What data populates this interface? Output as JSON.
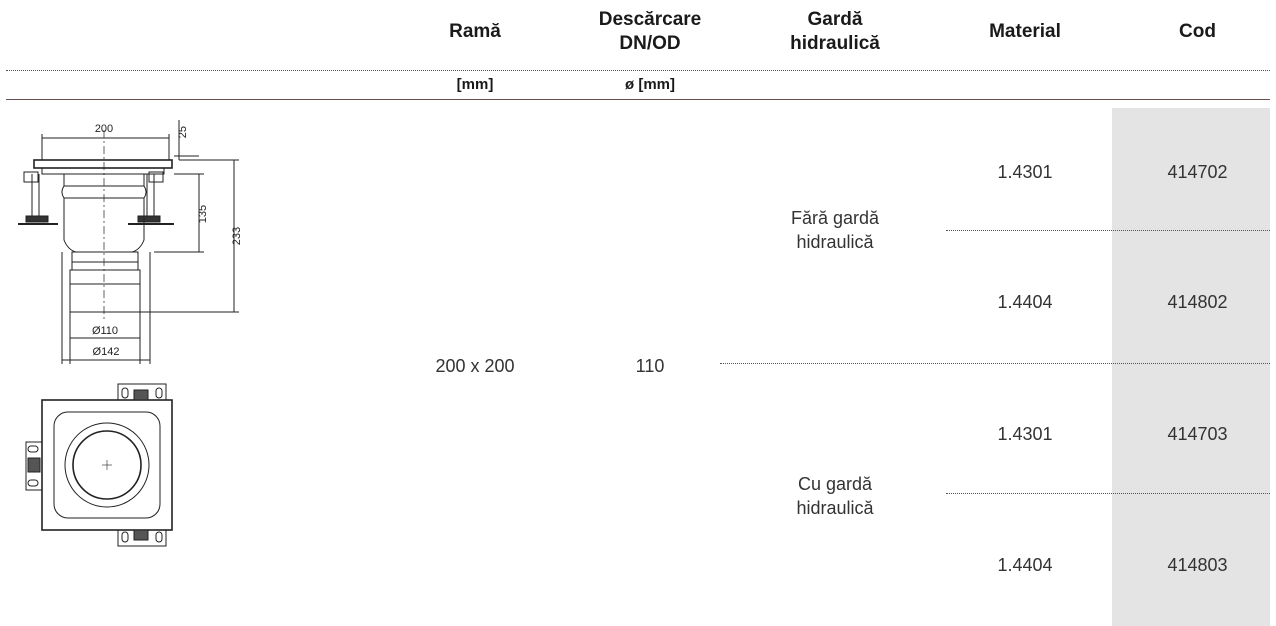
{
  "header": {
    "rama": "Ramă",
    "descarcare_l1": "Descărcare",
    "descarcare_l2": "DN/OD",
    "garda_l1": "Gardă",
    "garda_l2": "hidraulică",
    "material": "Material",
    "cod": "Cod"
  },
  "units": {
    "rama": "[mm]",
    "descarcare": "ø [mm]"
  },
  "drawing": {
    "dim_200": "200",
    "dim_25": "25",
    "dim_135": "135",
    "dim_233": "233",
    "dim_110": "Ø110",
    "dim_142": "Ø142"
  },
  "row": {
    "rama": "200 x 200",
    "descarcare": "110"
  },
  "groups": [
    {
      "garda_l1": "Fără gardă",
      "garda_l2": "hidraulică",
      "items": [
        {
          "material": "1.4301",
          "cod": "414702"
        },
        {
          "material": "1.4404",
          "cod": "414802"
        }
      ]
    },
    {
      "garda_l1": "Cu gardă",
      "garda_l2": "hidraulică",
      "items": [
        {
          "material": "1.4301",
          "cod": "414703"
        },
        {
          "material": "1.4404",
          "cod": "414803"
        }
      ]
    }
  ],
  "colors": {
    "code_background": "#e4e4e4",
    "header_rule": "#6b4f4f"
  }
}
